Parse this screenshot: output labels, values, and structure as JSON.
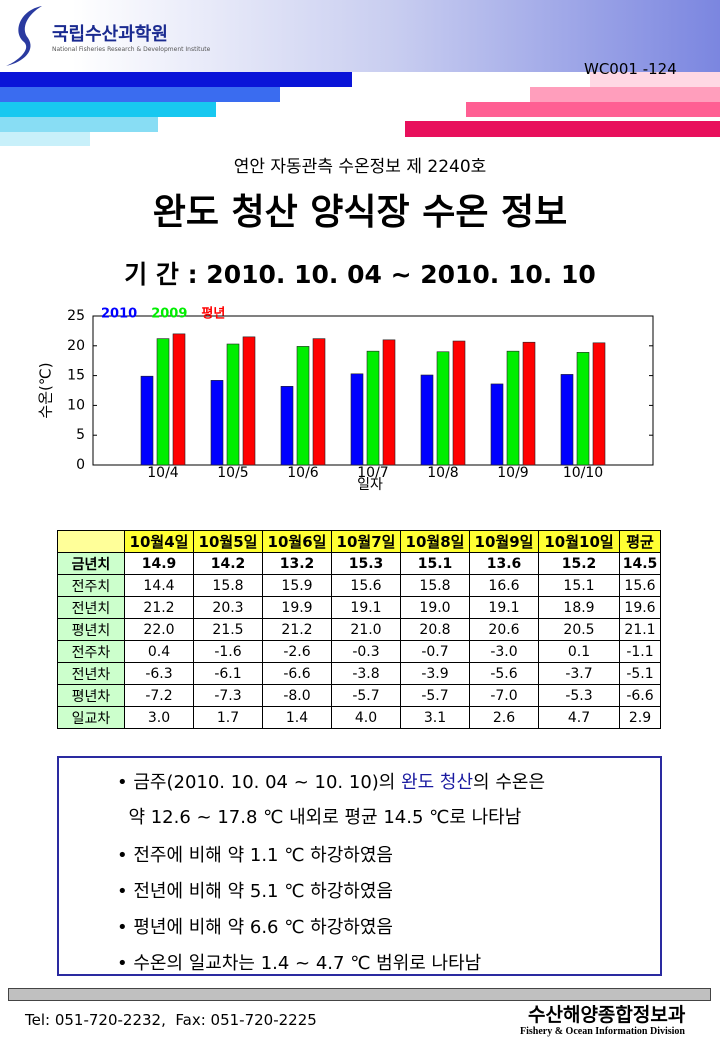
{
  "header": {
    "logo_title": "국립수산과학원",
    "logo_subtitle": "National Fisheries Research & Development Institute",
    "code": "WC001 -124",
    "subtitle": "연안 자동관측 수온정보 제 2240호",
    "title": "완도 청산 양식장 수온 정보",
    "period": "기 간 : 2010. 10. 04 ~ 2010. 10. 10"
  },
  "chart_data": {
    "type": "bar",
    "y_label": "수온(℃)",
    "x_label": "일자",
    "categories": [
      "10/4",
      "10/5",
      "10/6",
      "10/7",
      "10/8",
      "10/9",
      "10/10"
    ],
    "series": [
      {
        "name": "2010",
        "color": "#0000ff",
        "values": [
          14.9,
          14.2,
          13.2,
          15.3,
          15.1,
          13.6,
          15.2
        ]
      },
      {
        "name": "2009",
        "color": "#00ee00",
        "values": [
          21.2,
          20.3,
          19.9,
          19.1,
          19.0,
          19.1,
          18.9
        ]
      },
      {
        "name": "평년",
        "color": "#ff0000",
        "values": [
          22.0,
          21.5,
          21.2,
          21.0,
          20.8,
          20.6,
          20.5
        ]
      }
    ],
    "ylim": [
      0,
      25
    ],
    "yticks": [
      0,
      5,
      10,
      15,
      20,
      25
    ],
    "grid": false,
    "legend": "top-left"
  },
  "table": {
    "columns": [
      "10월4일",
      "10월5일",
      "10월6일",
      "10월7일",
      "10월8일",
      "10월9일",
      "10월10일",
      "평균"
    ],
    "rows": [
      {
        "label": "금년치",
        "cells": [
          "14.9",
          "14.2",
          "13.2",
          "15.3",
          "15.1",
          "13.6",
          "15.2",
          "14.5"
        ]
      },
      {
        "label": "전주치",
        "cells": [
          "14.4",
          "15.8",
          "15.9",
          "15.6",
          "15.8",
          "16.6",
          "15.1",
          "15.6"
        ]
      },
      {
        "label": "전년치",
        "cells": [
          "21.2",
          "20.3",
          "19.9",
          "19.1",
          "19.0",
          "19.1",
          "18.9",
          "19.6"
        ]
      },
      {
        "label": "평년치",
        "cells": [
          "22.0",
          "21.5",
          "21.2",
          "21.0",
          "20.8",
          "20.6",
          "20.5",
          "21.1"
        ]
      },
      {
        "label": "전주차",
        "cells": [
          "0.4",
          "-1.6",
          "-2.6",
          "-0.3",
          "-0.7",
          "-3.0",
          "0.1",
          "-1.1"
        ]
      },
      {
        "label": "전년차",
        "cells": [
          "-6.3",
          "-6.1",
          "-6.6",
          "-3.8",
          "-3.9",
          "-5.6",
          "-3.7",
          "-5.1"
        ]
      },
      {
        "label": "평년차",
        "cells": [
          "-7.2",
          "-7.3",
          "-8.0",
          "-5.7",
          "-5.7",
          "-7.0",
          "-5.3",
          "-6.6"
        ]
      },
      {
        "label": "일교차",
        "cells": [
          "3.0",
          "1.7",
          "1.4",
          "4.0",
          "3.1",
          "2.6",
          "4.7",
          "2.9"
        ]
      }
    ]
  },
  "summary": {
    "lead": [
      "금주(2010. 10. 04 ~ 10. 10)의 ",
      "완도 청산",
      "의 수온은"
    ],
    "lead_cont": "약 12.6 ~ 17.8 ℃ 내외로 평균 14.5 ℃로 나타남",
    "bullets": [
      "전주에 비해 약 1.1 ℃ 하강하였음",
      "전년에 비해 약 5.1 ℃ 하강하였음",
      "평년에 비해 약 6.6 ℃ 하강하였음",
      "수온의 일교차는 1.4 ~ 4.7 ℃ 범위로 나타남"
    ]
  },
  "footer": {
    "contact": "Tel: 051-720-2232,  Fax: 051-720-2225",
    "division_ko": "수산해양종합정보과",
    "division_en": "Fishery & Ocean Information Division"
  }
}
